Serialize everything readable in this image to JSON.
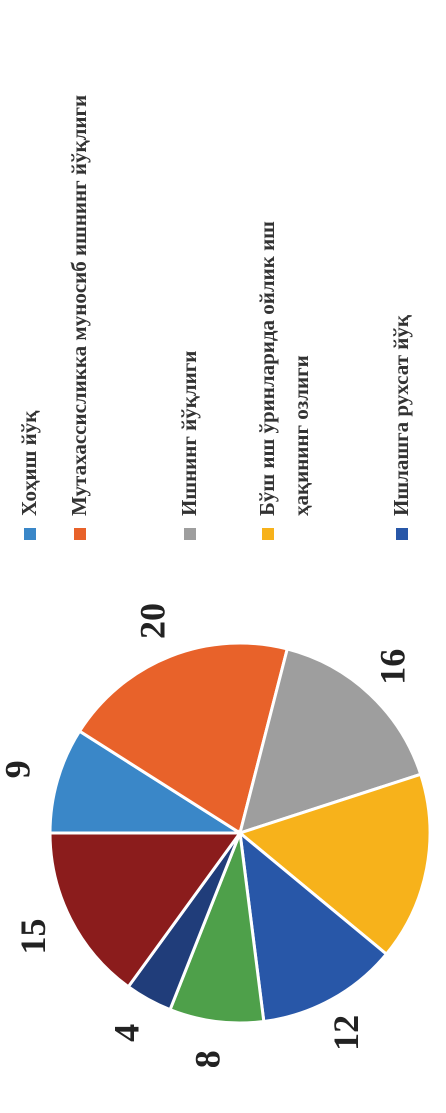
{
  "chart_data": {
    "type": "pie",
    "categories": [
      "Хоҳиш йўқ",
      "Мутахассисликка муносиб ишнинг йўқлиги",
      "Ишнинг йўқлиги",
      "Бўш иш ўринларида ойлик иш ҳақининг озлиги",
      "Ишлашга рухсат йўқ",
      null,
      null,
      null
    ],
    "values": [
      9,
      20,
      16,
      16,
      12,
      8,
      4,
      15
    ],
    "value_labels": [
      "9",
      "20",
      "16",
      null,
      "12",
      "8",
      "4",
      "15"
    ],
    "colors": [
      "#3a87c8",
      "#e8622a",
      "#9e9e9e",
      "#f7b21b",
      "#2857a8",
      "#4ea04a",
      "#203d7a",
      "#8b1c1c"
    ]
  }
}
